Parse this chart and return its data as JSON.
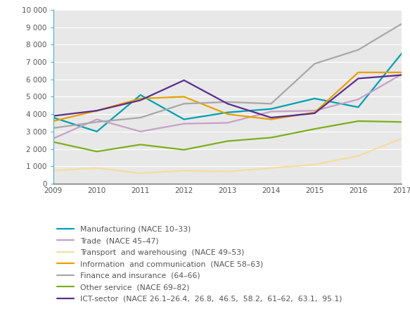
{
  "years": [
    2009,
    2010,
    2011,
    2012,
    2013,
    2014,
    2015,
    2016,
    2017
  ],
  "series": [
    {
      "label": "Manufacturing (NACE 10–33)",
      "values": [
        3800,
        3000,
        5100,
        3700,
        4100,
        4300,
        4900,
        4400,
        7500
      ],
      "color": "#00A0B0",
      "linewidth": 1.6
    },
    {
      "label": "Trade  (NACE 45–47)",
      "values": [
        2600,
        3700,
        3000,
        3450,
        3500,
        4150,
        4200,
        4850,
        6300
      ],
      "color": "#C8A0C8",
      "linewidth": 1.6
    },
    {
      "label": "Transport  and warehousing  (NACE 49–53)",
      "values": [
        750,
        900,
        600,
        750,
        700,
        900,
        1100,
        1600,
        2600
      ],
      "color": "#F5DDA0",
      "linewidth": 1.6
    },
    {
      "label": "Information  and communication  (NACE 58–63)",
      "values": [
        3600,
        4200,
        4900,
        5000,
        4000,
        3700,
        4100,
        6400,
        6400
      ],
      "color": "#E8A000",
      "linewidth": 1.6
    },
    {
      "label": "Finance and insurance  (64–66)",
      "values": [
        3200,
        3550,
        3800,
        4600,
        4700,
        4600,
        6900,
        7700,
        9200
      ],
      "color": "#A8A8A8",
      "linewidth": 1.6
    },
    {
      "label": "Other service  (NACE 69–82)",
      "values": [
        2400,
        1850,
        2250,
        1950,
        2450,
        2650,
        3150,
        3600,
        3550
      ],
      "color": "#7DAF1C",
      "linewidth": 1.6
    },
    {
      "label": "ICT-sector  (NACE 26.1–26.4,  26.8,  46.5,  58.2,  61–62,  63.1,  95.1)",
      "values": [
        3900,
        4200,
        4800,
        5950,
        4600,
        3800,
        4050,
        6050,
        6250
      ],
      "color": "#5B2D8E",
      "linewidth": 1.6
    }
  ],
  "ylim": [
    0,
    10000
  ],
  "yticks": [
    0,
    1000,
    2000,
    3000,
    4000,
    5000,
    6000,
    7000,
    8000,
    9000,
    10000
  ],
  "ytick_labels": [
    "0",
    "1 000",
    "2 000",
    "3 000",
    "4 000",
    "5 000",
    "6 000",
    "7 000",
    "8 000",
    "9 000",
    "10 000"
  ],
  "plot_bg_color": "#E8E8E8",
  "fig_bg_color": "#FFFFFF",
  "grid_color": "#FFFFFF",
  "axis_tick_color": "#4BAEC8",
  "tick_label_color": "#555555"
}
